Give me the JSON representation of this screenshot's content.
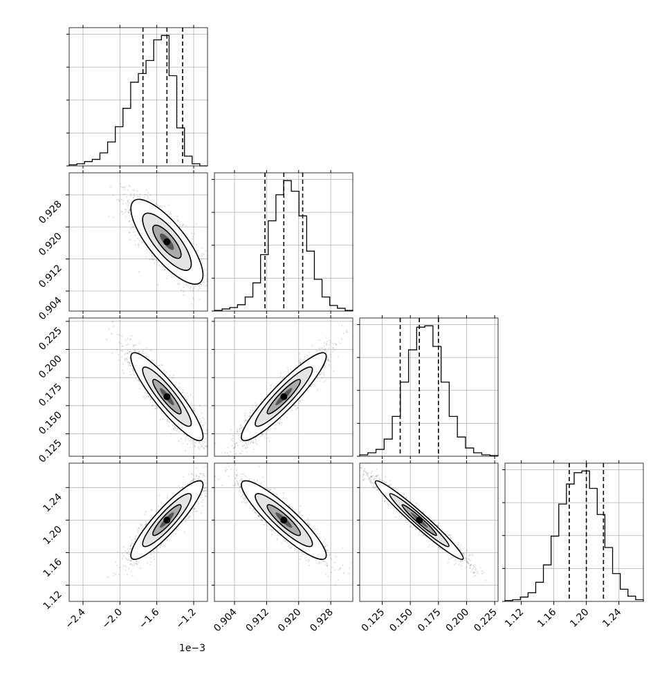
{
  "chart_data": {
    "type": "corner",
    "grid": true,
    "offset_label": "1e−3",
    "parameters": [
      {
        "index": 0,
        "range": [
          -2.55,
          -1.05
        ],
        "ticks": [
          -2.4,
          -2.0,
          -1.6,
          -1.2
        ],
        "tick_labels": [
          "−2.4",
          "−2.0",
          "−1.6",
          "−1.2"
        ],
        "mean": -1.49,
        "sd": 0.17,
        "quantiles": [
          -1.75,
          -1.49,
          -1.32
        ]
      },
      {
        "index": 1,
        "range": [
          0.899,
          0.9335
        ],
        "ticks": [
          0.904,
          0.912,
          0.92,
          0.928
        ],
        "tick_labels": [
          "0.904",
          "0.912",
          "0.920",
          "0.928"
        ],
        "mean": 0.9163,
        "sd": 0.0046,
        "quantiles": [
          0.9116,
          0.9163,
          0.921
        ]
      },
      {
        "index": 2,
        "range": [
          0.105,
          0.228
        ],
        "ticks": [
          0.125,
          0.15,
          0.175,
          0.2,
          0.225
        ],
        "tick_labels": [
          "0.125",
          "0.150",
          "0.175",
          "0.200",
          "0.225"
        ],
        "mean": 0.158,
        "sd": 0.017,
        "quantiles": [
          0.141,
          0.158,
          0.175
        ]
      },
      {
        "index": 3,
        "range": [
          1.1,
          1.27
        ],
        "ticks": [
          1.12,
          1.16,
          1.2,
          1.24
        ],
        "tick_labels": [
          "1.12",
          "1.16",
          "1.20",
          "1.24"
        ],
        "mean": 1.2,
        "sd": 0.021,
        "quantiles": [
          1.179,
          1.2,
          1.221
        ]
      }
    ],
    "correlations": {
      "1-0": -0.78,
      "2-0": -0.9,
      "2-1": 0.92,
      "3-0": 0.9,
      "3-1": -0.9,
      "3-2": -0.97
    },
    "histograms": [
      {
        "param": 0,
        "counts": [
          1,
          2,
          4,
          6,
          12,
          22,
          36,
          53,
          77,
          85,
          97,
          116,
          120,
          83,
          35,
          9,
          2,
          0
        ]
      },
      {
        "param": 1,
        "counts": [
          1,
          3,
          5,
          9,
          20,
          40,
          80,
          128,
          165,
          185,
          170,
          135,
          85,
          45,
          20,
          8,
          4,
          1
        ]
      },
      {
        "param": 2,
        "counts": [
          2,
          5,
          10,
          25,
          58,
          108,
          155,
          188,
          190,
          160,
          108,
          58,
          28,
          12,
          5,
          2,
          1
        ]
      },
      {
        "param": 3,
        "counts": [
          1,
          2,
          5,
          10,
          22,
          42,
          75,
          112,
          135,
          148,
          150,
          130,
          100,
          62,
          32,
          14,
          6,
          2
        ]
      }
    ]
  }
}
